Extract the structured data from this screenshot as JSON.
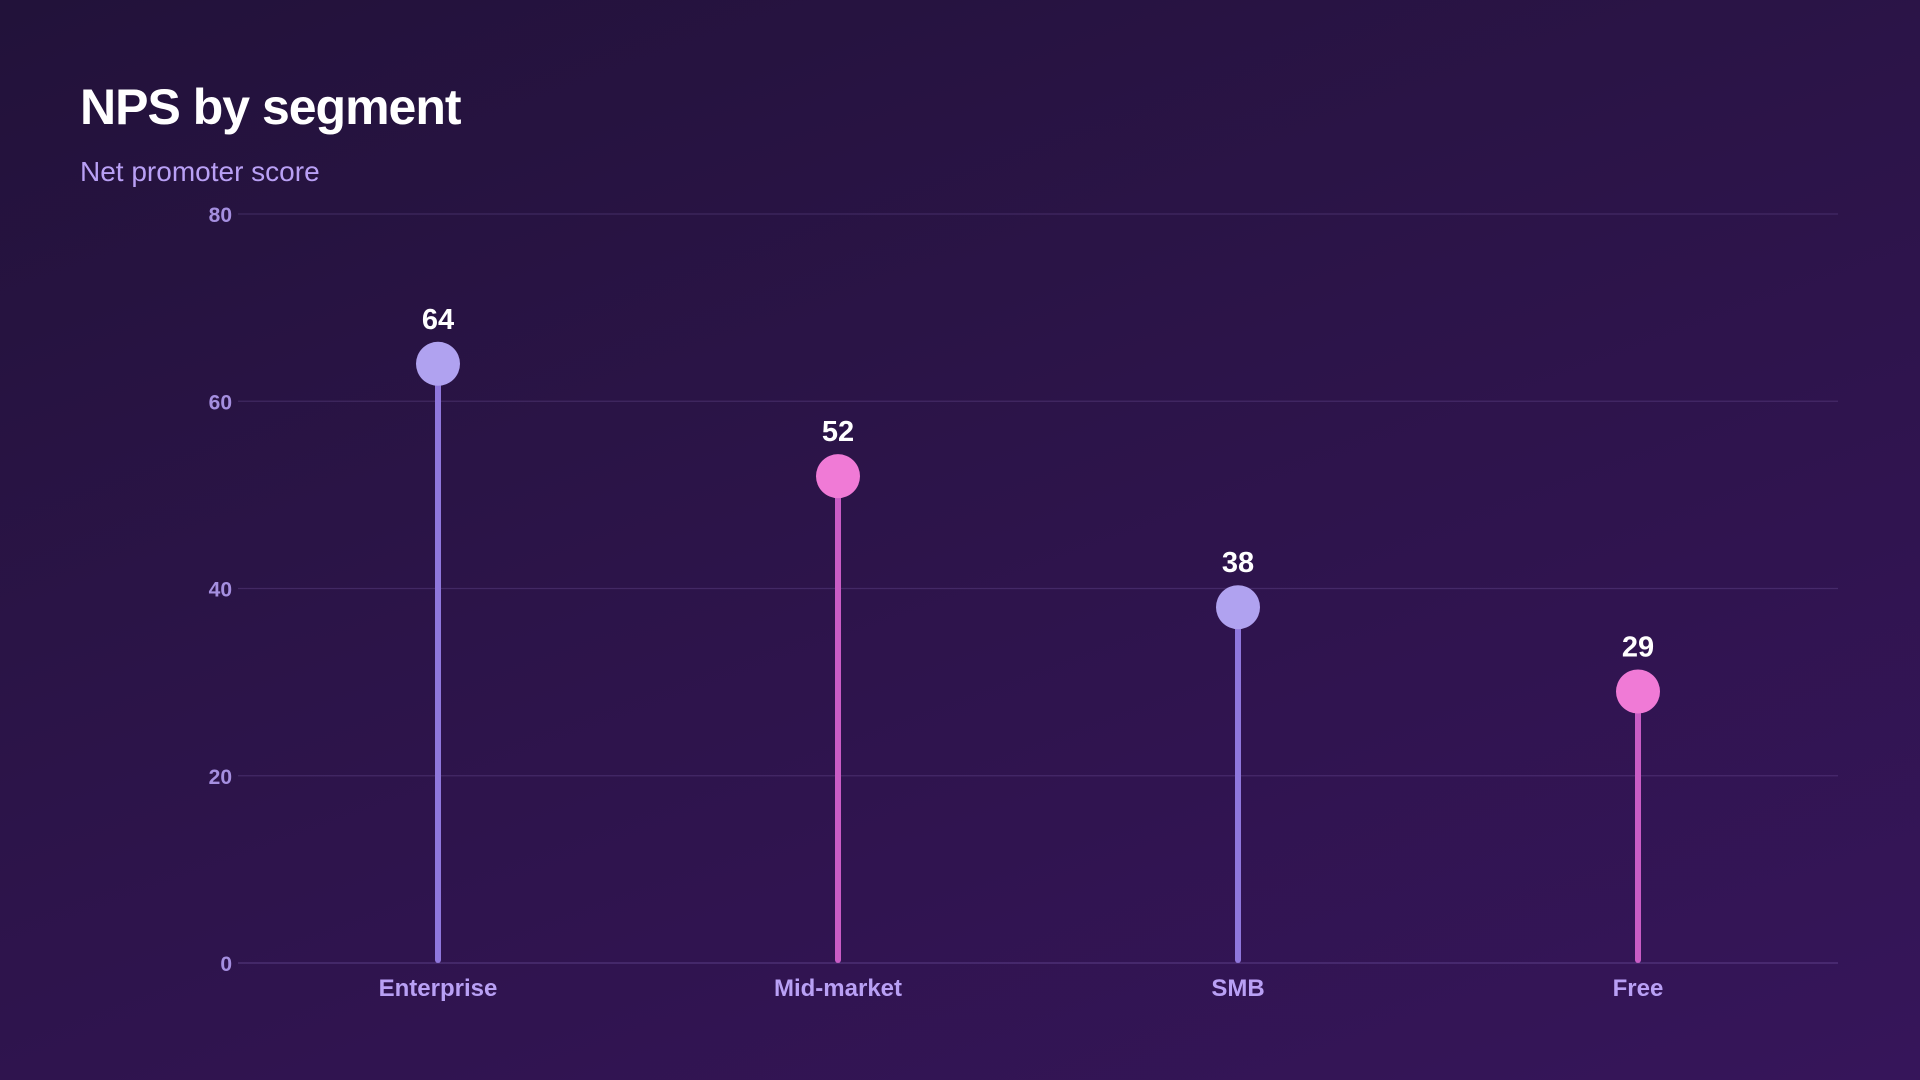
{
  "chart_data": {
    "type": "lollipop",
    "title": "NPS by segment",
    "subtitle": "Net promoter score",
    "categories": [
      "Enterprise",
      "Mid-market",
      "SMB",
      "Free"
    ],
    "values": [
      64,
      52,
      38,
      29
    ],
    "value_labels": [
      "64",
      "52",
      "38",
      "29"
    ],
    "ylim": [
      0,
      80
    ],
    "yticks": [
      0,
      20,
      40,
      60,
      80
    ],
    "ytick_labels": [
      "0",
      "20",
      "40",
      "60",
      "80"
    ],
    "grid": true,
    "legend": "none",
    "colors": [
      "#b0a2f0",
      "#f07ad6",
      "#b0a2f0",
      "#f07ad6"
    ],
    "stem_colors": [
      "#8f77dc",
      "#c95cc5",
      "#8f77dc",
      "#c95cc5"
    ]
  }
}
